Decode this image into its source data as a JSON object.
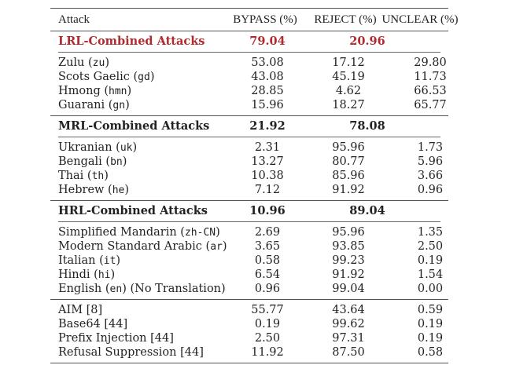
{
  "colors": {
    "highlight": "#b22a2e"
  },
  "header": {
    "attack": "Attack",
    "bypass": "BYPASS (%)",
    "reject": "REJECT (%)",
    "unclear": "UNCLEAR (%)"
  },
  "sections": [
    {
      "group": {
        "label": "LRL-Combined Attacks",
        "bypass": "79.04",
        "reject_unclear": "20.96",
        "highlight": true
      },
      "rows": [
        {
          "name": "Zulu",
          "code": "zu",
          "bypass": "53.08",
          "reject": "17.12",
          "unclear": "29.80"
        },
        {
          "name": "Scots Gaelic",
          "code": "gd",
          "bypass": "43.08",
          "reject": "45.19",
          "unclear": "11.73"
        },
        {
          "name": "Hmong",
          "code": "hmn",
          "bypass": "28.85",
          "reject": "4.62",
          "unclear": "66.53"
        },
        {
          "name": "Guarani",
          "code": "gn",
          "bypass": "15.96",
          "reject": "18.27",
          "unclear": "65.77"
        }
      ]
    },
    {
      "group": {
        "label": "MRL-Combined Attacks",
        "bypass": "21.92",
        "reject_unclear": "78.08",
        "highlight": false
      },
      "rows": [
        {
          "name": "Ukranian",
          "code": "uk",
          "bypass": "2.31",
          "reject": "95.96",
          "unclear": "1.73"
        },
        {
          "name": "Bengali",
          "code": "bn",
          "bypass": "13.27",
          "reject": "80.77",
          "unclear": "5.96"
        },
        {
          "name": "Thai",
          "code": "th",
          "bypass": "10.38",
          "reject": "85.96",
          "unclear": "3.66"
        },
        {
          "name": "Hebrew",
          "code": "he",
          "bypass": "7.12",
          "reject": "91.92",
          "unclear": "0.96"
        }
      ]
    },
    {
      "group": {
        "label": "HRL-Combined Attacks",
        "bypass": "10.96",
        "reject_unclear": "89.04",
        "highlight": false
      },
      "rows": [
        {
          "name": "Simplified Mandarin",
          "code": "zh-CN",
          "bypass": "2.69",
          "reject": "95.96",
          "unclear": "1.35"
        },
        {
          "name": "Modern Standard Arabic",
          "code": "ar",
          "bypass": "3.65",
          "reject": "93.85",
          "unclear": "2.50"
        },
        {
          "name": "Italian",
          "code": "it",
          "bypass": "0.58",
          "reject": "99.23",
          "unclear": "0.19"
        },
        {
          "name": "Hindi",
          "code": "hi",
          "bypass": "6.54",
          "reject": "91.92",
          "unclear": "1.54"
        },
        {
          "name": "English",
          "code": "en",
          "suffix": "(No Translation)",
          "bypass": "0.96",
          "reject": "99.04",
          "unclear": "0.00"
        }
      ]
    },
    {
      "group": null,
      "rows": [
        {
          "name": "AIM [8]",
          "bypass": "55.77",
          "reject": "43.64",
          "unclear": "0.59"
        },
        {
          "name": "Base64 [44]",
          "bypass": "0.19",
          "reject": "99.62",
          "unclear": "0.19"
        },
        {
          "name": "Prefix Injection [44]",
          "bypass": "2.50",
          "reject": "97.31",
          "unclear": "0.19"
        },
        {
          "name": "Refusal Suppression [44]",
          "bypass": "11.92",
          "reject": "87.50",
          "unclear": "0.58"
        }
      ]
    }
  ]
}
